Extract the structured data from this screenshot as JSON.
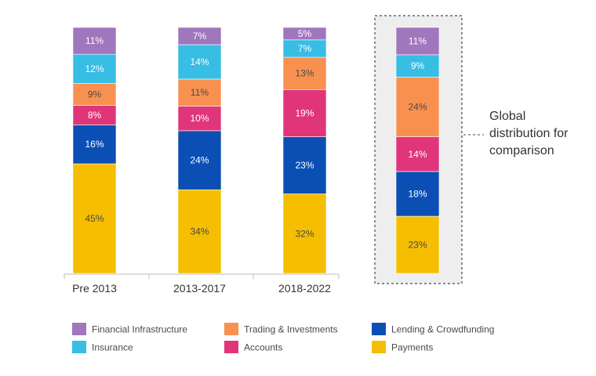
{
  "chart_data": {
    "type": "bar",
    "stacked": true,
    "value_unit": "%",
    "categories": [
      "Pre 2013",
      "2013-2017",
      "2018-2022"
    ],
    "series": [
      {
        "name": "Payments",
        "color": "#F5BE00",
        "values": [
          45,
          34,
          32
        ]
      },
      {
        "name": "Lending & Crowdfunding",
        "color": "#0B4FB5",
        "values": [
          16,
          24,
          23
        ]
      },
      {
        "name": "Accounts",
        "color": "#E0357A",
        "values": [
          8,
          10,
          19
        ]
      },
      {
        "name": "Trading & Investments",
        "color": "#F89150",
        "values": [
          9,
          11,
          13
        ]
      },
      {
        "name": "Insurance",
        "color": "#38BDE4",
        "values": [
          12,
          14,
          7
        ]
      },
      {
        "name": "Financial Infrastructure",
        "color": "#A076BD",
        "values": [
          11,
          7,
          5
        ]
      }
    ],
    "comparison": {
      "label": "Global distribution for comparison",
      "values": {
        "Payments": 23,
        "Lending & Crowdfunding": 18,
        "Accounts": 14,
        "Trading & Investments": 24,
        "Insurance": 9,
        "Financial Infrastructure": 11
      }
    },
    "legend_position": "bottom",
    "legend_order": [
      "Financial Infrastructure",
      "Trading & Investments",
      "Lending & Crowdfunding",
      "Insurance",
      "Accounts",
      "Payments"
    ],
    "grid": false
  },
  "colors": {
    "label_dark": "#4a4a4a",
    "axis": "#bdbdbd",
    "comparison_box_border": "#3a4a6b",
    "comparison_box_fill": "#eeeeee"
  }
}
